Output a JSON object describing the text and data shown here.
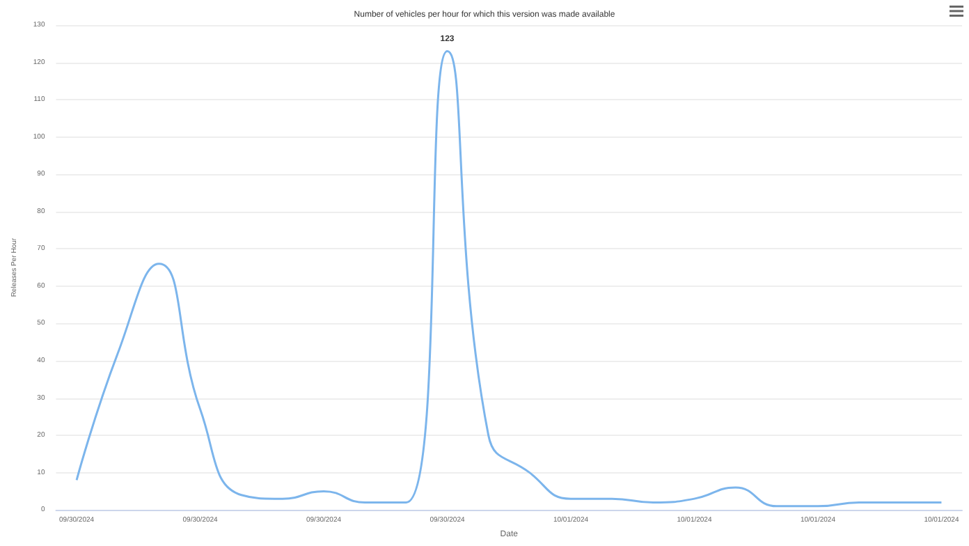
{
  "chart_data": {
    "type": "line",
    "title": "Number of vehicles per hour for which this version was made available",
    "xlabel": "Date",
    "ylabel": "Releases Per Hour",
    "categories": [
      "09/30/2024",
      null,
      null,
      "09/30/2024",
      null,
      null,
      "09/30/2024",
      null,
      null,
      "09/30/2024",
      null,
      null,
      "10/01/2024",
      null,
      null,
      "10/01/2024",
      null,
      null,
      "10/01/2024",
      null,
      null,
      "10/01/2024"
    ],
    "series": [
      {
        "color": "#7cb5ec",
        "values": [
          8,
          42,
          66,
          27,
          4,
          3,
          5,
          2,
          2,
          123,
          20,
          10,
          3,
          3,
          2,
          3,
          6,
          1,
          1,
          2,
          2,
          2
        ],
        "value_labels": [
          null,
          null,
          null,
          null,
          null,
          null,
          null,
          null,
          null,
          "123",
          null,
          null,
          null,
          null,
          null,
          null,
          null,
          null,
          null,
          null,
          null,
          null
        ]
      }
    ],
    "ylim": [
      0,
      130
    ],
    "yticks": [
      0,
      10,
      20,
      30,
      40,
      50,
      60,
      70,
      80,
      90,
      100,
      110,
      120,
      130
    ],
    "grid": "y",
    "marker": "none",
    "line_style": "solid"
  }
}
